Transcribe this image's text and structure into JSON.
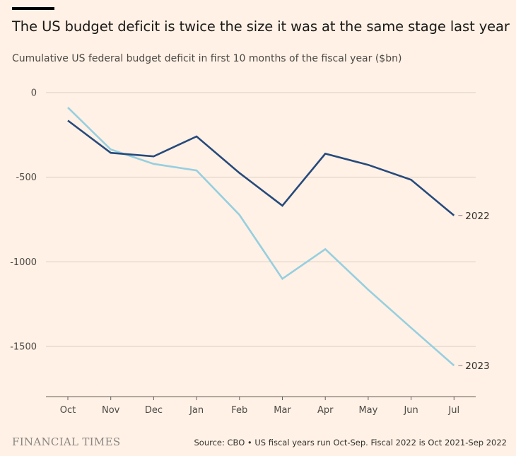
{
  "title": "The US budget deficit is twice the size it was at the same stage last year",
  "subtitle": "Cumulative US federal budget deficit in first 10 months of the fiscal year ($bn)",
  "brand": "FINANCIAL TIMES",
  "source": "Source: CBO • US fiscal years run Oct-Sep. Fiscal 2022 is Oct 2021-Sep 2022",
  "chart_data": {
    "type": "line",
    "categories": [
      "Oct",
      "Nov",
      "Dec",
      "Jan",
      "Feb",
      "Mar",
      "Apr",
      "May",
      "Jun",
      "Jul"
    ],
    "series": [
      {
        "name": "2022",
        "color": "#264a7c",
        "values": [
          -165,
          -356,
          -377,
          -259,
          -475,
          -668,
          -361,
          -427,
          -515,
          -726
        ]
      },
      {
        "name": "2023",
        "color": "#96cfe0",
        "values": [
          -88,
          -336,
          -421,
          -460,
          -723,
          -1100,
          -925,
          -1165,
          -1390,
          -1613
        ]
      }
    ],
    "yticks": [
      0,
      -500,
      -1000,
      -1500
    ],
    "ytick_labels": [
      "0",
      "-500",
      "-1000",
      "-1500"
    ],
    "ylim": [
      -1800,
      0
    ],
    "xlabel": "",
    "ylabel": "",
    "grid": true,
    "legend": "inline-right"
  }
}
